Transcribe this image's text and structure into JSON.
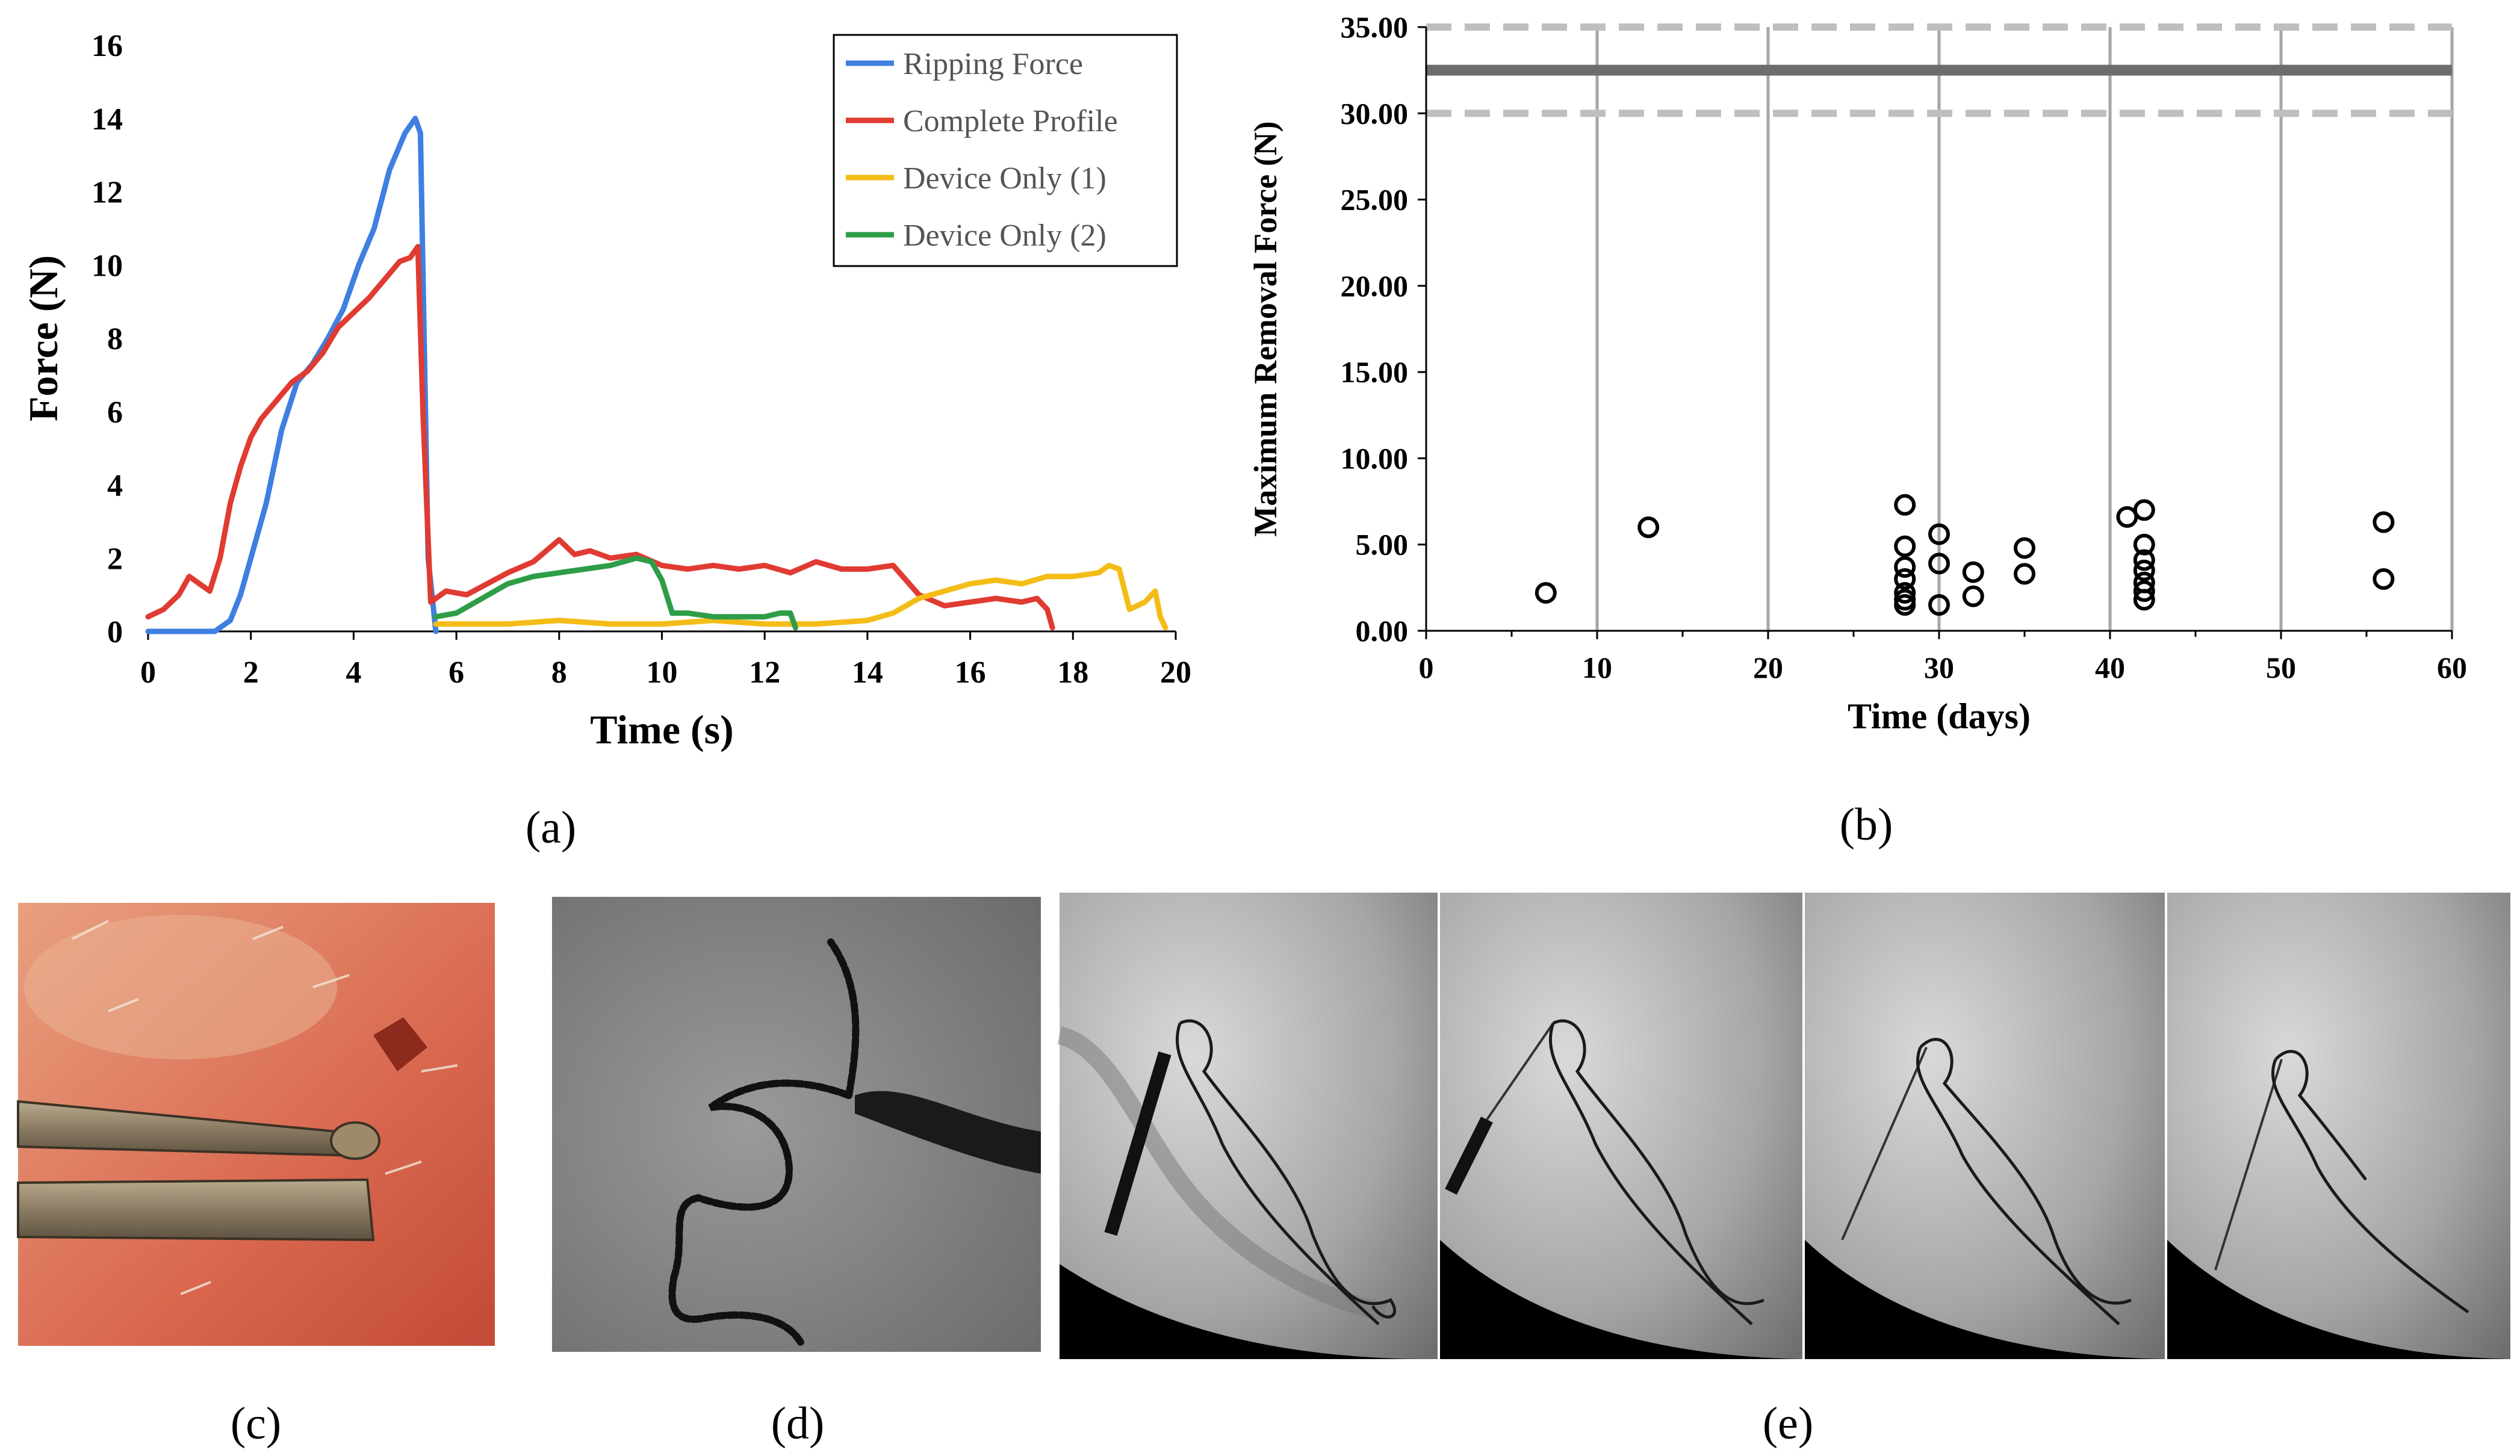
{
  "panel_labels": {
    "a": "(a)",
    "b": "(b)",
    "c": "(c)",
    "d": "(d)",
    "e": "(e)"
  },
  "chart_data": [
    {
      "id": "a",
      "type": "line",
      "xlabel": "Time (s)",
      "ylabel": "Force (N)",
      "xlim": [
        0,
        20
      ],
      "ylim": [
        0,
        16
      ],
      "xticks": [
        0,
        2,
        4,
        6,
        8,
        10,
        12,
        14,
        16,
        18,
        20
      ],
      "yticks": [
        0,
        2,
        4,
        6,
        8,
        10,
        12,
        14,
        16
      ],
      "legend_position": "top-right",
      "series": [
        {
          "name": "Ripping Force",
          "color": "#3f7fe0",
          "x": [
            0,
            0.5,
            1,
            1.3,
            1.6,
            1.8,
            2,
            2.3,
            2.6,
            2.9,
            3.2,
            3.5,
            3.8,
            4.1,
            4.4,
            4.7,
            5.0,
            5.2,
            5.3,
            5.45,
            5.6
          ],
          "y": [
            0,
            0,
            0,
            0,
            0.3,
            1,
            2,
            3.5,
            5.5,
            6.8,
            7.3,
            8,
            8.8,
            10,
            11,
            12.6,
            13.6,
            14,
            13.6,
            2,
            0
          ]
        },
        {
          "name": "Complete Profile",
          "color": "#e03b32",
          "x": [
            0,
            0.3,
            0.6,
            0.8,
            1.0,
            1.2,
            1.4,
            1.6,
            1.8,
            2.0,
            2.2,
            2.5,
            2.8,
            3.1,
            3.4,
            3.7,
            4.0,
            4.3,
            4.6,
            4.9,
            5.1,
            5.25,
            5.35,
            5.5,
            5.8,
            6.2,
            6.6,
            7.0,
            7.5,
            8.0,
            8.3,
            8.6,
            9.0,
            9.5,
            10.0,
            10.5,
            11,
            11.5,
            12,
            12.5,
            13,
            13.5,
            14,
            14.5,
            15,
            15.5,
            16,
            16.5,
            17,
            17.3,
            17.5,
            17.6
          ],
          "y": [
            0.4,
            0.6,
            1.0,
            1.5,
            1.3,
            1.1,
            2.0,
            3.5,
            4.5,
            5.3,
            5.8,
            6.3,
            6.8,
            7.1,
            7.6,
            8.3,
            8.7,
            9.1,
            9.6,
            10.1,
            10.2,
            10.5,
            6.0,
            0.8,
            1.1,
            1.0,
            1.3,
            1.6,
            1.9,
            2.5,
            2.1,
            2.2,
            2.0,
            2.1,
            1.8,
            1.7,
            1.8,
            1.7,
            1.8,
            1.6,
            1.9,
            1.7,
            1.7,
            1.8,
            1.0,
            0.7,
            0.8,
            0.9,
            0.8,
            0.9,
            0.6,
            0.1
          ]
        },
        {
          "name": "Device Only (1)",
          "color": "#f4bc16",
          "x": [
            5.6,
            6.0,
            7,
            8,
            9,
            10,
            11,
            12,
            13,
            14,
            14.5,
            15,
            15.5,
            16,
            16.5,
            17,
            17.5,
            18,
            18.5,
            18.7,
            18.9,
            19.1,
            19.4,
            19.6,
            19.7,
            19.8
          ],
          "y": [
            0.2,
            0.2,
            0.2,
            0.3,
            0.2,
            0.2,
            0.3,
            0.2,
            0.2,
            0.3,
            0.5,
            0.9,
            1.1,
            1.3,
            1.4,
            1.3,
            1.5,
            1.5,
            1.6,
            1.8,
            1.7,
            0.6,
            0.8,
            1.1,
            0.4,
            0.1
          ]
        },
        {
          "name": "Device Only (2)",
          "color": "#2e9d48",
          "x": [
            5.6,
            6.0,
            6.5,
            7.0,
            7.5,
            8.0,
            8.5,
            9.0,
            9.5,
            9.8,
            10.0,
            10.2,
            10.5,
            11,
            11.5,
            12,
            12.3,
            12.5,
            12.6
          ],
          "y": [
            0.4,
            0.5,
            0.9,
            1.3,
            1.5,
            1.6,
            1.7,
            1.8,
            2.0,
            1.9,
            1.4,
            0.5,
            0.5,
            0.4,
            0.4,
            0.4,
            0.5,
            0.5,
            0.1
          ]
        }
      ]
    },
    {
      "id": "b",
      "type": "scatter",
      "xlabel": "Time (days)",
      "ylabel": "Maximum Removal Force (N)",
      "xlim": [
        0,
        60
      ],
      "ylim": [
        0,
        35
      ],
      "xticks": [
        0,
        10,
        20,
        30,
        40,
        50,
        60
      ],
      "yticks": [
        "0.00",
        "5.00",
        "10.00",
        "15.00",
        "20.00",
        "25.00",
        "30.00",
        "35.00"
      ],
      "reference_lines": {
        "solid": 32.5,
        "dashed": [
          30,
          35
        ]
      },
      "vertical_gridlines": [
        10,
        20,
        30,
        40,
        50,
        60
      ],
      "points": [
        {
          "x": 7,
          "y": 2.2
        },
        {
          "x": 13,
          "y": 6.0
        },
        {
          "x": 28,
          "y": 7.3
        },
        {
          "x": 28,
          "y": 4.9
        },
        {
          "x": 28,
          "y": 3.7
        },
        {
          "x": 28,
          "y": 3.0
        },
        {
          "x": 28,
          "y": 2.2
        },
        {
          "x": 28,
          "y": 1.8
        },
        {
          "x": 28,
          "y": 1.5
        },
        {
          "x": 30,
          "y": 5.6
        },
        {
          "x": 30,
          "y": 3.9
        },
        {
          "x": 30,
          "y": 1.5
        },
        {
          "x": 32,
          "y": 3.4
        },
        {
          "x": 32,
          "y": 2.0
        },
        {
          "x": 35,
          "y": 4.8
        },
        {
          "x": 35,
          "y": 3.3
        },
        {
          "x": 41,
          "y": 6.6
        },
        {
          "x": 42,
          "y": 7.0
        },
        {
          "x": 42,
          "y": 5.0
        },
        {
          "x": 42,
          "y": 4.1
        },
        {
          "x": 42,
          "y": 3.5
        },
        {
          "x": 42,
          "y": 2.8
        },
        {
          "x": 42,
          "y": 2.3
        },
        {
          "x": 42,
          "y": 1.8
        },
        {
          "x": 56,
          "y": 6.3
        },
        {
          "x": 56,
          "y": 3.0
        }
      ]
    }
  ]
}
